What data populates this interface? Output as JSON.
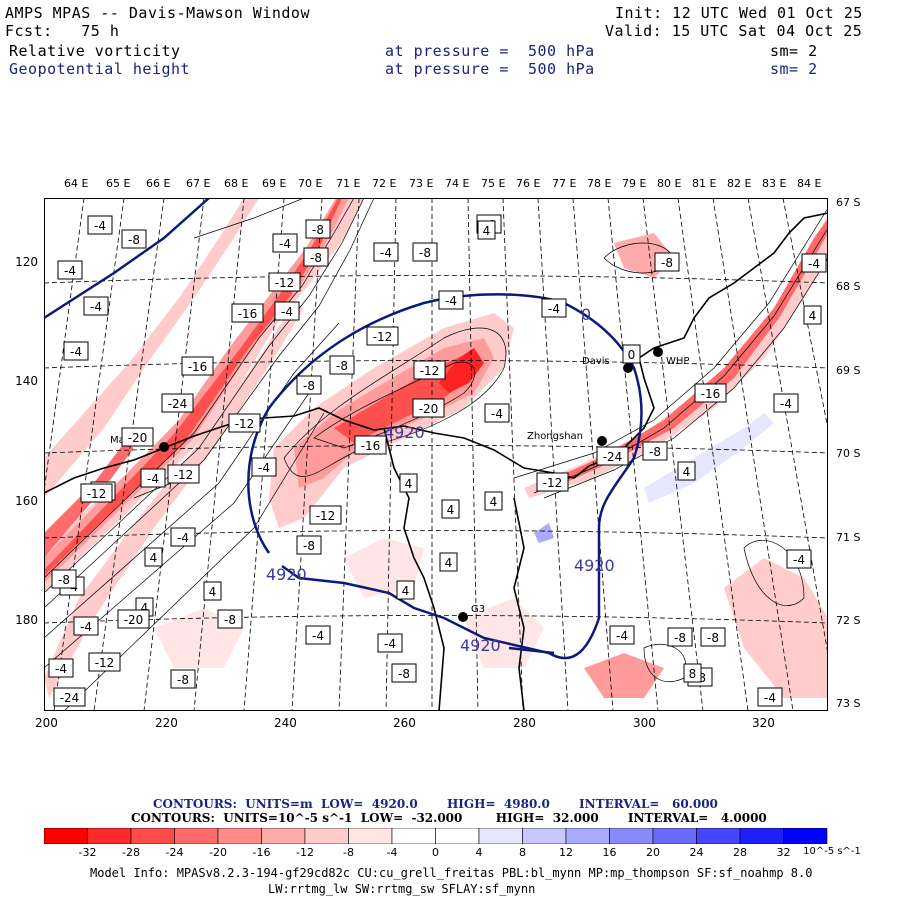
{
  "header": {
    "title": "AMPS MPAS -- Davis-Mawson Window",
    "init": "Init: 12 UTC Wed 01 Oct 25",
    "fcst": "Fcst:   75 h",
    "valid": "Valid: 15 UTC Sat 04 Oct 25",
    "field1": {
      "name": "Relative vorticity",
      "level": "at pressure =  500 hPa",
      "sm": "sm= 2"
    },
    "field2": {
      "name": "Geopotential height",
      "level": "at pressure =  500 hPa",
      "sm": "sm= 2"
    }
  },
  "axes": {
    "top_lon": [
      "64 E",
      "65 E",
      "66 E",
      "67 E",
      "68 E",
      "69 E",
      "70 E",
      "71 E",
      "72 E",
      "73 E",
      "74 E",
      "75 E",
      "76 E",
      "77 E",
      "78 E",
      "79 E",
      "80 E",
      "81 E",
      "82 E",
      "83 E",
      "84 E"
    ],
    "right_lat": [
      "67 S",
      "68 S",
      "69 S",
      "70 S",
      "71 S",
      "72 S",
      "73 S"
    ],
    "left_y": [
      "120",
      "140",
      "160",
      "180"
    ],
    "bottom_x": [
      "200",
      "220",
      "240",
      "260",
      "280",
      "300",
      "320"
    ]
  },
  "stations": [
    {
      "name": "Mawson"
    },
    {
      "name": "Davis"
    },
    {
      "name": "WHP"
    },
    {
      "name": "Zhongshan"
    },
    {
      "name": "G3"
    }
  ],
  "vorticity_labels": [
    "-4",
    "-8",
    "-4",
    "-8",
    "-4",
    "-8",
    "-4",
    "-8",
    "-12",
    "-4",
    "-16",
    "-4",
    "-4",
    "-12",
    "-4",
    "-16",
    "-24",
    "-20",
    "-12",
    "-8",
    "-8",
    "-12",
    "-20",
    "-4",
    "-12",
    "-16",
    "-4",
    "-4",
    "-8",
    "4",
    "4",
    "4",
    "-8",
    "4",
    "-12",
    "4",
    "-4",
    "4",
    "-8",
    "-12",
    "-4",
    "-4",
    "-8",
    "-12",
    "-4",
    "-8",
    "-20",
    "-12",
    "-24",
    "-8",
    "-24",
    "4",
    "-8",
    "-4",
    "8",
    "-4",
    "-4",
    "-8",
    "4",
    "4",
    "-8",
    "-4",
    "4",
    "-8",
    "-4",
    "-8",
    "-4",
    "-16",
    "-4",
    "-4",
    "4",
    "0",
    "-4"
  ],
  "height_labels": [
    "4920",
    "4920",
    "4920",
    "4920",
    "0"
  ],
  "contour_text": {
    "line1": "CONTOURS:  UNITS=m  LOW=  4920.0       HIGH=  4980.0       INTERVAL=   60.000",
    "line2": "CONTOURS:  UNITS=10^-5 s^-1  LOW=  -32.000        HIGH=  32.000       INTERVAL=   4.0000"
  },
  "colorbar": {
    "labels": [
      "-32",
      "-28",
      "-24",
      "-20",
      "-16",
      "-12",
      "-8",
      "-4",
      "0",
      "4",
      "8",
      "12",
      "16",
      "20",
      "24",
      "28",
      "32"
    ],
    "units": "10^-5 s^-1",
    "colors": [
      "#ff0000",
      "#ff2b2b",
      "#ff4b4b",
      "#ff6b6b",
      "#ff8b8b",
      "#ffabab",
      "#ffcbcb",
      "#ffe6e6",
      "#ffffff",
      "#ffffff",
      "#e6e6ff",
      "#c8c8ff",
      "#aaaaff",
      "#8a8aff",
      "#6a6aff",
      "#4646ff",
      "#1e1eff",
      "#0000ff"
    ]
  },
  "model_info": {
    "line1": "Model Info: MPASv8.2.3-194-gf29cd82c CU:cu_grell_freitas PBL:bl_mynn MP:mp_thompson SF:sf_noahmp 8.0",
    "line2": "LW:rrtmg_lw SW:rrtmg_sw SFLAY:sf_mynn"
  }
}
